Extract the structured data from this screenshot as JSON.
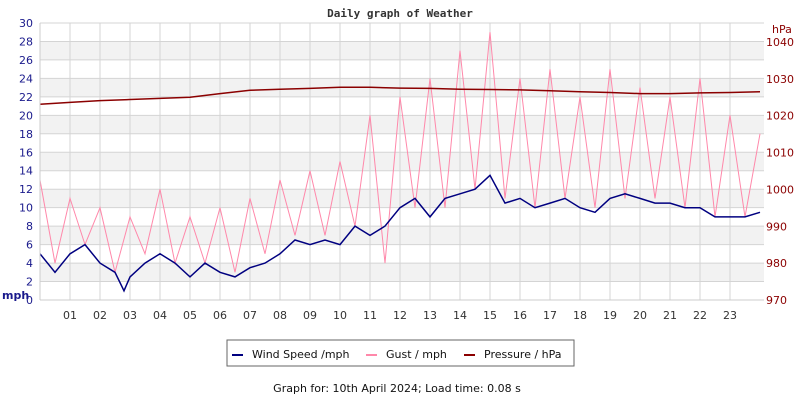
{
  "chart_data": {
    "type": "line",
    "title": "Daily graph of Weather",
    "ylabel_left": "mph",
    "ylabel_right": "hPa",
    "ylim_left": [
      0,
      30
    ],
    "ylim_right": [
      970,
      1045
    ],
    "xlim": [
      0,
      24
    ],
    "grid": true,
    "legend_position": "bottom",
    "left_ticks": [
      "0",
      "2",
      "4",
      "6",
      "8",
      "10",
      "12",
      "14",
      "16",
      "18",
      "20",
      "22",
      "24",
      "26",
      "28",
      "30"
    ],
    "right_ticks": [
      "970",
      "980",
      "990",
      "1000",
      "1010",
      "1020",
      "1030",
      "1040"
    ],
    "x_ticks": [
      "01",
      "02",
      "03",
      "04",
      "05",
      "06",
      "07",
      "08",
      "09",
      "10",
      "11",
      "12",
      "13",
      "14",
      "15",
      "16",
      "17",
      "18",
      "19",
      "20",
      "21",
      "22",
      "23"
    ],
    "series": [
      {
        "name": "Wind Speed /mph",
        "axis": "left",
        "color": "#000080",
        "x": [
          0,
          0.5,
          1,
          1.5,
          2,
          2.5,
          2.8,
          3,
          3.5,
          4,
          4.5,
          5,
          5.5,
          6,
          6.5,
          7,
          7.5,
          8,
          8.5,
          9,
          9.5,
          10,
          10.5,
          11,
          11.5,
          12,
          12.5,
          13,
          13.5,
          14,
          14.5,
          15,
          15.5,
          16,
          16.5,
          17,
          17.5,
          18,
          18.5,
          19,
          19.5,
          20,
          20.5,
          21,
          21.5,
          22,
          22.5,
          23,
          23.5,
          24
        ],
        "values": [
          5,
          3,
          5,
          6,
          4,
          3,
          1,
          2.5,
          4,
          5,
          4,
          2.5,
          4,
          3,
          2.5,
          3.5,
          4,
          5,
          6.5,
          6,
          6.5,
          6,
          8,
          7,
          8,
          10,
          11,
          9,
          11,
          11.5,
          12,
          13.5,
          10.5,
          11,
          10,
          10.5,
          11,
          10,
          9.5,
          11,
          11.5,
          11,
          10.5,
          10.5,
          10,
          10,
          9,
          9,
          9,
          9.5
        ]
      },
      {
        "name": "Gust / mph",
        "axis": "left",
        "color": "#ff88aa",
        "x": [
          0,
          0.5,
          1,
          1.5,
          2,
          2.5,
          3,
          3.5,
          4,
          4.5,
          5,
          5.5,
          6,
          6.5,
          7,
          7.5,
          8,
          8.5,
          9,
          9.5,
          10,
          10.5,
          11,
          11.5,
          12,
          12.5,
          13,
          13.5,
          14,
          14.5,
          15,
          15.5,
          16,
          16.5,
          17,
          17.5,
          18,
          18.5,
          19,
          19.5,
          20,
          20.5,
          21,
          21.5,
          22,
          22.5,
          23,
          23.5,
          24
        ],
        "values": [
          13,
          4,
          11,
          6,
          10,
          3,
          9,
          5,
          12,
          4,
          9,
          4,
          10,
          3,
          11,
          5,
          13,
          7,
          14,
          7,
          15,
          8,
          20,
          4,
          22,
          10,
          24,
          10,
          27,
          12,
          29,
          11,
          24,
          10,
          25,
          11,
          22,
          10,
          25,
          11,
          23,
          11,
          22,
          10,
          24,
          9,
          20,
          9,
          18
        ]
      },
      {
        "name": "Pressure / hPa",
        "axis": "right",
        "color": "#8b0000",
        "x": [
          0,
          1,
          2,
          3,
          4,
          5,
          6,
          7,
          8,
          9,
          10,
          11,
          12,
          13,
          14,
          15,
          16,
          17,
          18,
          19,
          20,
          21,
          22,
          23,
          24
        ],
        "values": [
          1023.1,
          1023.6,
          1024.1,
          1024.4,
          1024.7,
          1025,
          1026,
          1026.9,
          1027.2,
          1027.4,
          1027.7,
          1027.7,
          1027.5,
          1027.4,
          1027.2,
          1027.1,
          1027,
          1026.8,
          1026.5,
          1026.3,
          1026,
          1026,
          1026.2,
          1026.3,
          1026.5
        ]
      }
    ]
  },
  "footer": "Graph for: 10th April 2024; Load time: 0.08 s"
}
